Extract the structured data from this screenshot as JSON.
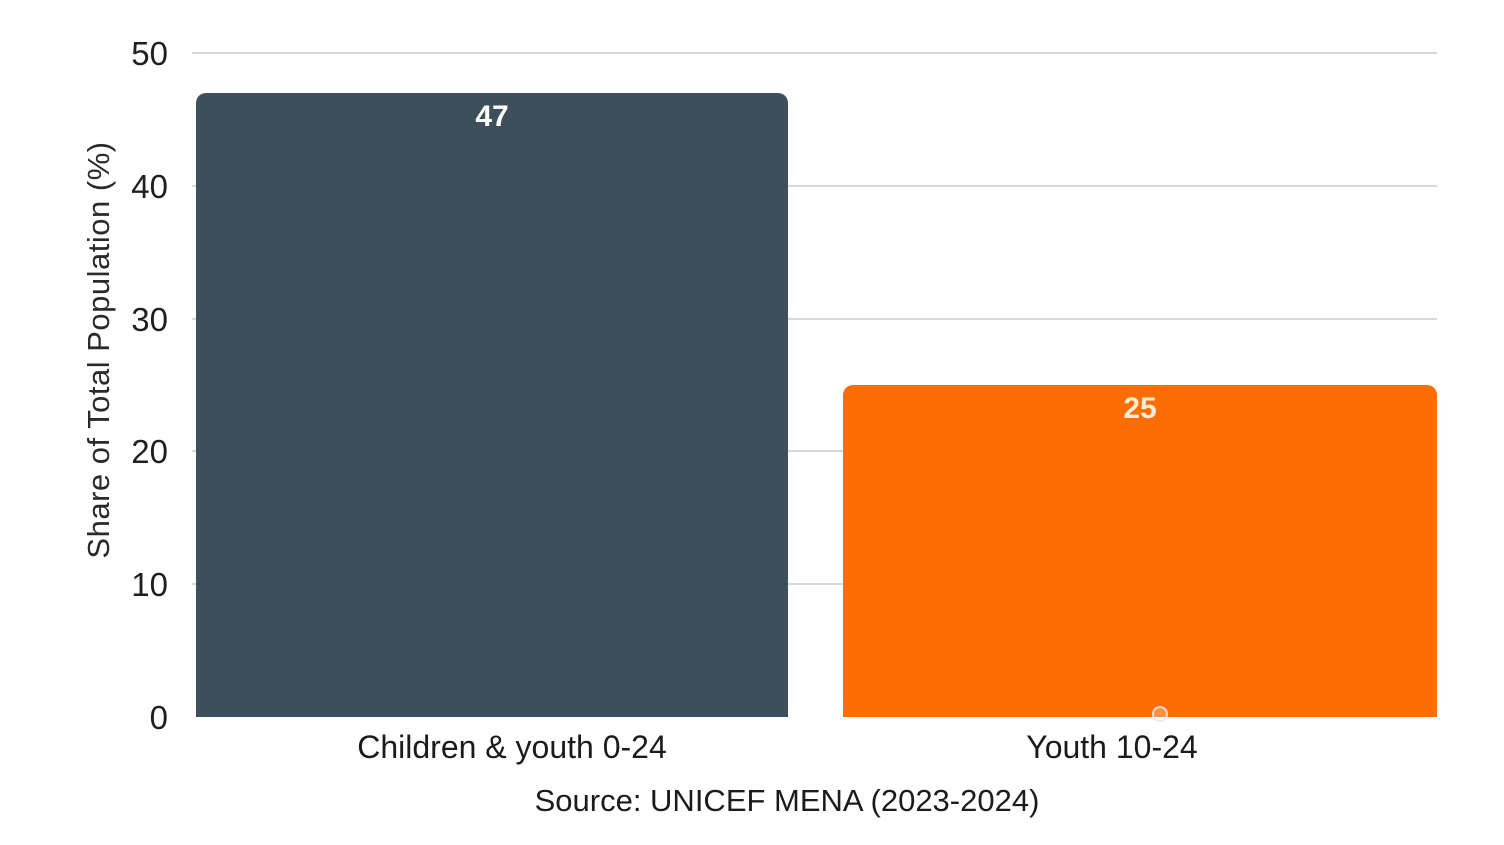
{
  "chart_data": {
    "type": "bar",
    "categories": [
      "Children & youth 0-24",
      "Youth 10-24"
    ],
    "values": [
      47,
      25
    ],
    "title": "",
    "xlabel": "",
    "ylabel": "Share of Total Population (%)",
    "ylim": [
      0,
      50
    ],
    "yticks": [
      0,
      10,
      20,
      30,
      40,
      50
    ],
    "grid": "horizontal",
    "legend": "none",
    "bar_colors": [
      "#3E4F5C",
      "#FC6D04"
    ],
    "value_label_colors": [
      "#FFFFFF",
      "#F8ECD4"
    ],
    "source": "Source: UNICEF MENA (2023-2024)"
  },
  "colors": {
    "background": "#FFFFFF",
    "gridline": "#D8D8D8",
    "axis_text": "#1F1F1F"
  }
}
